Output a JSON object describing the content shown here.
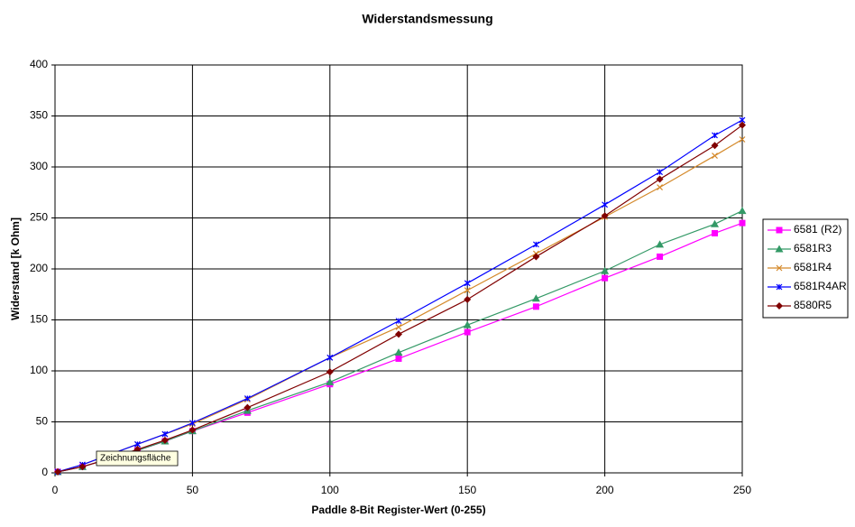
{
  "chart_data": {
    "type": "line",
    "title": "Widerstandsmessung",
    "x_label": "Paddle 8-Bit Register-Wert (0-255)",
    "y_label": "Widerstand [k Ohm]",
    "x": [
      1,
      10,
      20,
      30,
      40,
      50,
      70,
      100,
      125,
      150,
      175,
      200,
      220,
      240,
      250
    ],
    "series": [
      {
        "name": "6581 (R2)",
        "color": "#ff00ff",
        "marker": "square",
        "values": [
          1,
          6,
          14,
          22,
          31,
          41,
          59,
          87,
          112,
          138,
          163,
          191,
          212,
          235,
          245
        ]
      },
      {
        "name": "6581R3",
        "color": "#339966",
        "marker": "triangle",
        "values": [
          1,
          6,
          14,
          22,
          31,
          41,
          61,
          89,
          118,
          145,
          171,
          198,
          224,
          244,
          257
        ]
      },
      {
        "name": "6581R4",
        "color": "#d4892a",
        "marker": "x",
        "values": [
          1,
          8,
          18,
          28,
          38,
          48,
          72,
          113,
          143,
          179,
          215,
          251,
          280,
          311,
          327
        ]
      },
      {
        "name": "6581R4AR",
        "color": "#0000ff",
        "marker": "star",
        "values": [
          1,
          8,
          18,
          28,
          38,
          49,
          73,
          113,
          149,
          186,
          224,
          263,
          295,
          331,
          346
        ]
      },
      {
        "name": "8580R5",
        "color": "#800000",
        "marker": "diamond",
        "values": [
          1,
          6,
          14,
          23,
          32,
          42,
          64,
          99,
          136,
          170,
          212,
          252,
          288,
          321,
          341
        ]
      }
    ],
    "xlim": [
      0,
      250
    ],
    "xticks": [
      0,
      50,
      100,
      150,
      200,
      250
    ],
    "ylim": [
      0,
      400
    ],
    "yticks": [
      0,
      50,
      100,
      150,
      200,
      250,
      300,
      350,
      400
    ],
    "grid": true,
    "legend": "right",
    "annotation": "Zeichnungsfläche"
  }
}
